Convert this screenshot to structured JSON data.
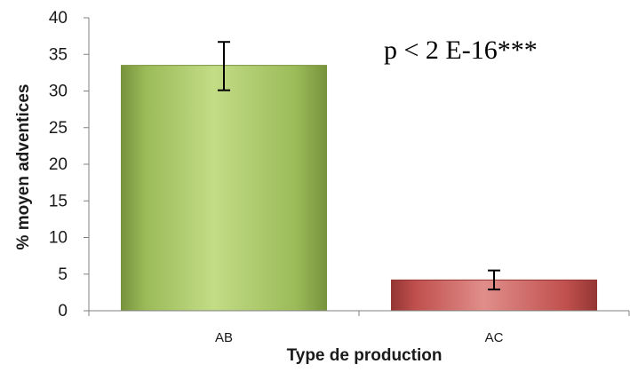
{
  "chart_data": {
    "type": "bar",
    "categories": [
      "AB",
      "AC"
    ],
    "values": [
      33.5,
      4.2
    ],
    "error_bars": [
      {
        "low": 30.1,
        "high": 36.7
      },
      {
        "low": 2.9,
        "high": 5.5
      }
    ],
    "ylim": [
      0,
      40
    ],
    "yticks": [
      0,
      5,
      10,
      15,
      20,
      25,
      30,
      35,
      40
    ],
    "xlabel": "Type de production",
    "ylabel": "% moyen adventices",
    "annotation": "p < 2 E-16***",
    "grid": false,
    "legend": "none",
    "colors": {
      "bars": [
        "#9bbb59",
        "#c0504d"
      ],
      "bars_light": [
        "#c3dc86",
        "#e08e8b"
      ],
      "bars_dark": [
        "#77933c",
        "#943634"
      ],
      "axis": "#808080",
      "error_bar": "#000000"
    }
  }
}
